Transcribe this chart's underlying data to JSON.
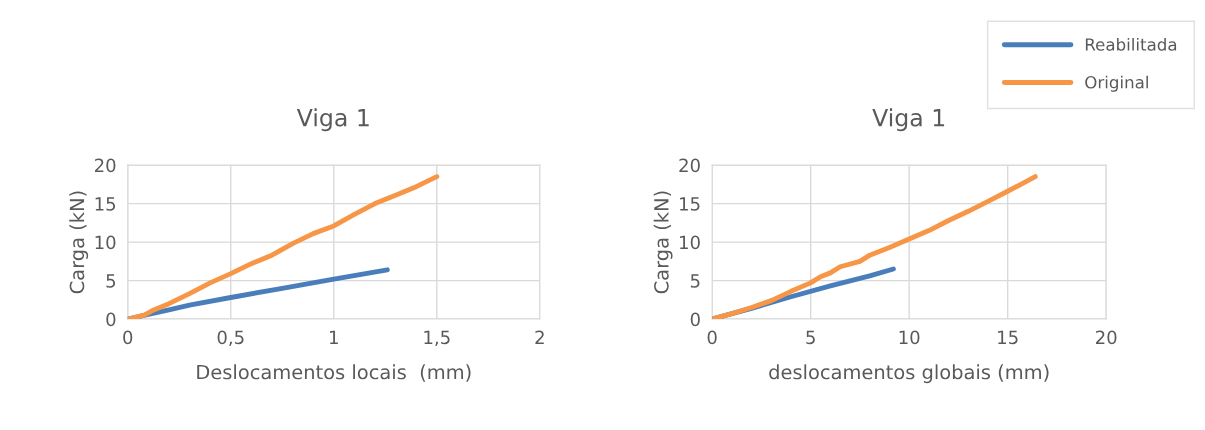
{
  "chart_data": [
    {
      "type": "line",
      "title": "Viga 1",
      "xlabel": "Deslocamentos locais  (mm)",
      "ylabel": "Carga (kN)",
      "xlim": [
        0,
        2
      ],
      "xticks": [
        0,
        {
          "value": 0.5,
          "label": "0,5"
        },
        1,
        {
          "value": 1.5,
          "label": "1,5"
        },
        2
      ],
      "ylim": [
        0,
        20
      ],
      "yticks": [
        0,
        5,
        10,
        15,
        20
      ],
      "grid": true,
      "legend": false,
      "marker": "none",
      "line_style": "solid",
      "series": [
        {
          "color": "#4a7ebb",
          "x": [
            0,
            0.1,
            0.2,
            0.3,
            0.5,
            0.75,
            1.0,
            1.26
          ],
          "values": [
            0,
            0.6,
            1.2,
            1.8,
            2.8,
            4.0,
            5.2,
            6.4
          ]
        },
        {
          "color": "#f79646",
          "x": [
            0,
            0.08,
            0.12,
            0.2,
            0.3,
            0.4,
            0.5,
            0.6,
            0.7,
            0.8,
            0.9,
            1.0,
            1.1,
            1.2,
            1.3,
            1.4,
            1.5
          ],
          "values": [
            0,
            0.5,
            1.1,
            2.0,
            3.3,
            4.7,
            5.9,
            7.2,
            8.3,
            9.8,
            11.1,
            12.1,
            13.6,
            15.0,
            16.1,
            17.2,
            18.5
          ]
        }
      ]
    },
    {
      "type": "line",
      "title": "Viga 1",
      "xlabel": "deslocamentos globais (mm)",
      "ylabel": "Carga (kN)",
      "xlim": [
        0,
        20
      ],
      "xticks": [
        0,
        5,
        10,
        15,
        20
      ],
      "ylim": [
        0,
        20
      ],
      "yticks": [
        0,
        5,
        10,
        15,
        20
      ],
      "grid": true,
      "legend": "top right",
      "marker": "none",
      "line_style": "solid",
      "series": [
        {
          "name": "Reabilitada",
          "color": "#4a7ebb",
          "x": [
            0,
            2,
            4,
            6,
            8,
            9.2
          ],
          "values": [
            0,
            1.4,
            2.9,
            4.3,
            5.6,
            6.5
          ]
        },
        {
          "name": "Original",
          "color": "#f79646",
          "x": [
            0,
            1,
            2,
            3,
            4,
            5,
            5.5,
            6,
            6.5,
            7.5,
            8,
            9,
            10,
            11,
            12,
            13,
            14,
            15,
            16.4
          ],
          "values": [
            0,
            0.7,
            1.5,
            2.4,
            3.6,
            4.7,
            5.5,
            6.0,
            6.8,
            7.5,
            8.3,
            9.3,
            10.4,
            11.5,
            12.8,
            14.0,
            15.3,
            16.6,
            18.5
          ]
        }
      ]
    }
  ]
}
